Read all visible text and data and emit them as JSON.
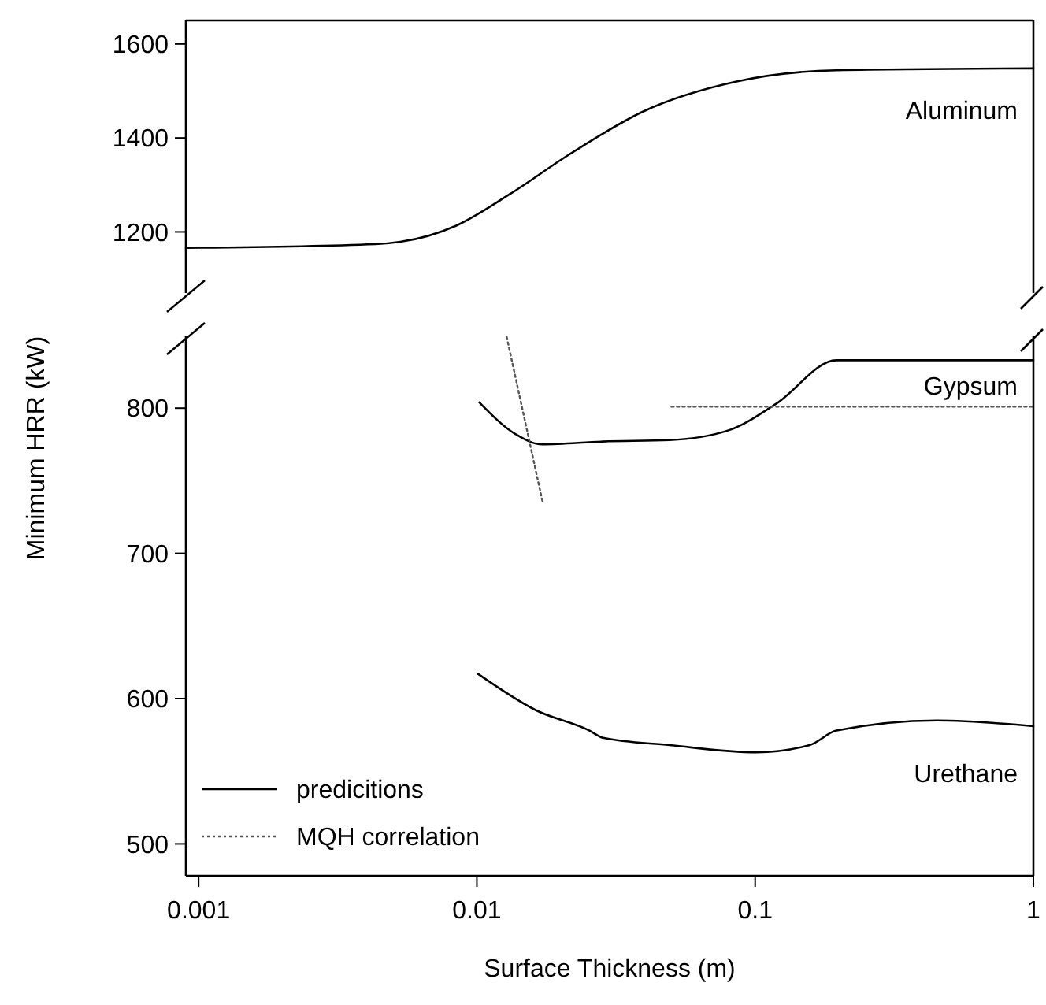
{
  "chart_data": [
    {
      "type": "line",
      "xlim": [
        0.0009,
        1
      ],
      "ylim": [
        1070,
        1650
      ],
      "yticks": [
        1200,
        1400,
        1600
      ],
      "log": "x",
      "tick_labels": "y",
      "annotations": [
        "Aluminum"
      ],
      "series": [
        {
          "color": "#000000",
          "line_style": "solid",
          "x": [
            0.0009,
            0.00432,
            0.0084,
            0.0131,
            0.0215,
            0.0395,
            0.0857,
            0.196,
            1.0
          ],
          "values": [
            1166,
            1174,
            1213,
            1280,
            1365,
            1456,
            1520,
            1544,
            1548
          ]
        }
      ]
    },
    {
      "type": "line",
      "xlim": [
        0.0009,
        1
      ],
      "ylim": [
        478,
        850
      ],
      "xticks": [
        0.001,
        0.01,
        0.1,
        1
      ],
      "yticks": [
        500,
        600,
        700,
        800
      ],
      "log": "x",
      "xlabel": "Surface Thickness (m)",
      "ylabel": "Minimum HRR (kW)",
      "legend": "bottom left",
      "annotations": [
        "Gypsum",
        "Urethane"
      ],
      "series": [
        {
          "name": "predicitions",
          "color": "#000000",
          "line_style": "solid",
          "x": [
            0.0102,
            0.0138,
            0.0172,
            0.0284,
            0.0492,
            0.081,
            0.119,
            0.196,
            1.0
          ],
          "values": [
            804,
            782,
            775,
            777,
            778,
            785,
            803,
            833,
            833
          ]
        },
        {
          "color": "#000000",
          "line_style": "solid",
          "x": [
            0.0101,
            0.0163,
            0.0254,
            0.0284,
            0.0492,
            0.101,
            0.157,
            0.196,
            0.45,
            1.0
          ],
          "values": [
            617,
            592,
            578,
            573,
            568,
            563,
            568,
            578,
            585,
            581
          ]
        },
        {
          "name": "MQH correlation",
          "color": "#555555",
          "line_style": "dotted",
          "x": [
            0.0128,
            0.0172
          ],
          "values": [
            849,
            736
          ]
        },
        {
          "color": "#555555",
          "line_style": "dotted",
          "x": [
            0.05,
            1.0
          ],
          "values": [
            801,
            801
          ]
        }
      ]
    }
  ]
}
